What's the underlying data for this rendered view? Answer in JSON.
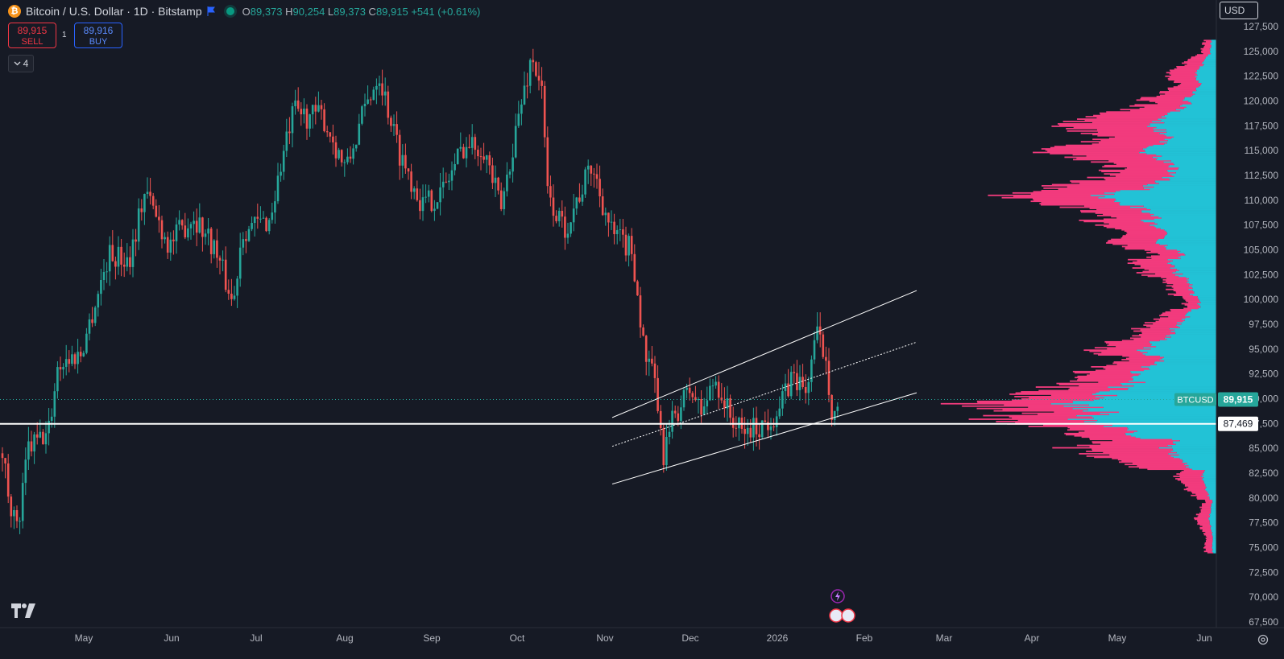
{
  "header": {
    "logo_letter": "₿",
    "symbol_title": "Bitcoin / U.S. Dollar · 1D · Bitstamp",
    "open_label": "O",
    "open": "89,373",
    "high_label": "H",
    "high": "90,254",
    "low_label": "L",
    "low": "89,373",
    "close_label": "C",
    "close": "89,915",
    "change": "+541 (+0.61%)"
  },
  "trade": {
    "sell_price": "89,915",
    "sell_label": "SELL",
    "spread": "1",
    "buy_price": "89,916",
    "buy_label": "BUY"
  },
  "indicators_toggle": {
    "count": "4"
  },
  "currency_button": {
    "label": "USD"
  },
  "price_axis": {
    "labels": [
      "127,500",
      "125,000",
      "122,500",
      "120,000",
      "117,500",
      "115,000",
      "112,500",
      "110,000",
      "107,500",
      "105,000",
      "102,500",
      "100,000",
      "97,500",
      "95,000",
      "92,500",
      "90,000",
      "87,500",
      "85,000",
      "82,500",
      "80,000",
      "77,500",
      "75,000",
      "72,500",
      "70,000",
      "67,500"
    ]
  },
  "time_axis": {
    "labels": [
      "May",
      "Jun",
      "Jul",
      "Aug",
      "Sep",
      "Oct",
      "Nov",
      "Dec",
      "2026",
      "Feb",
      "Mar",
      "Apr",
      "May",
      "Jun"
    ]
  },
  "last_price_tag": {
    "symbol": "BTCUSD",
    "price": "89,915"
  },
  "horizontal_line_tag": {
    "price": "87,469"
  },
  "colors": {
    "background": "#161a25",
    "up": "#26a69a",
    "down": "#ef5350",
    "profile_pink": "#f23b7d",
    "profile_cyan": "#22c2d6"
  },
  "chart_data": {
    "type": "candlestick",
    "symbol": "BTCUSD",
    "timeframe": "1D",
    "ylim": [
      67500,
      127500
    ],
    "monthly_path": [
      {
        "month": "Apr",
        "price": 84000
      },
      {
        "month": "May",
        "price": 95000
      },
      {
        "month": "Jun",
        "price": 106000
      },
      {
        "month": "Jul",
        "price": 108000
      },
      {
        "month": "Aug",
        "price": 118000
      },
      {
        "month": "Sep",
        "price": 110000
      },
      {
        "month": "Oct",
        "price": 114000
      },
      {
        "month": "Nov",
        "price": 110000
      },
      {
        "month": "Dec",
        "price": 89000
      },
      {
        "month": "2026",
        "price": 88000
      },
      {
        "month": "Jan",
        "price": 92500
      },
      {
        "month": "Feb",
        "price": 89915
      }
    ],
    "all_time_high": 126200,
    "cycle_low": 80600,
    "horizontal_line": 87469,
    "last_price": 89915,
    "channel": {
      "upper": [
        [
          88100,
          100900
        ]
      ],
      "middle": [
        [
          85200,
          95700
        ]
      ],
      "lower": [
        [
          81400,
          90600
        ]
      ]
    },
    "volume_profile_range": [
      74500,
      126200
    ]
  }
}
